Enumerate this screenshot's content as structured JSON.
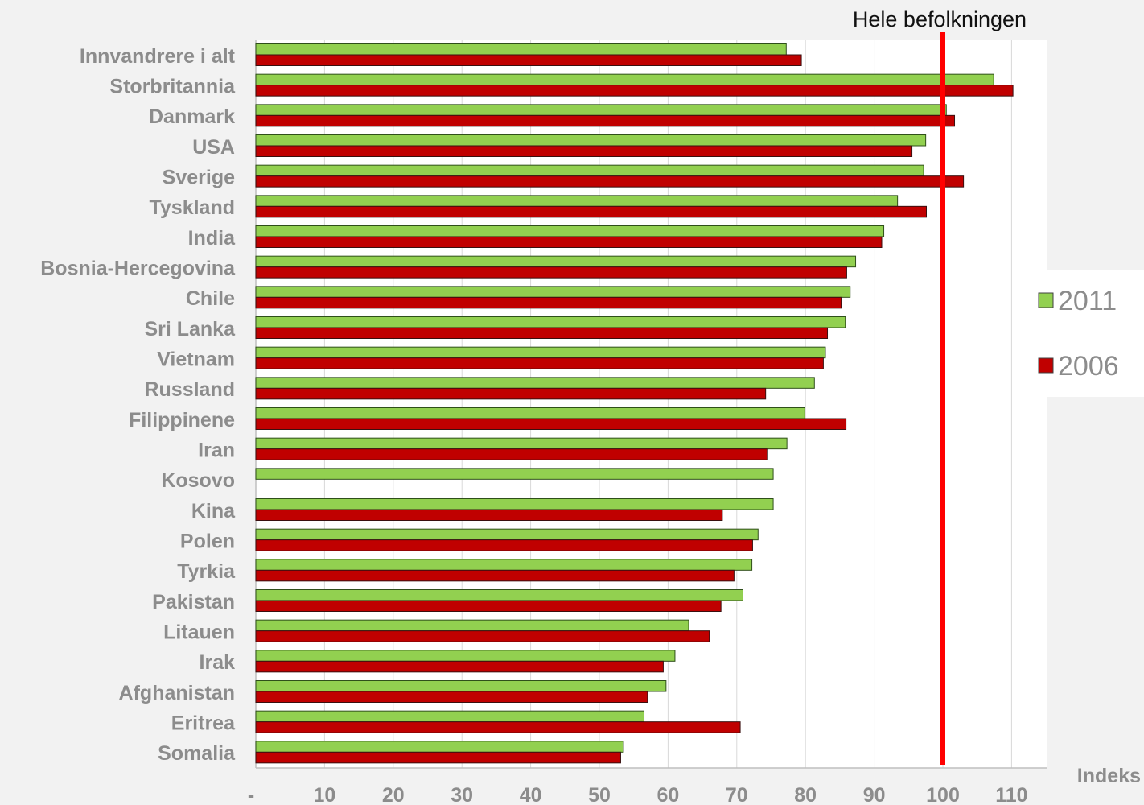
{
  "chart_data": {
    "type": "bar",
    "orientation": "horizontal",
    "categories": [
      "Innvandrere i alt",
      "Storbritannia",
      "Danmark",
      "USA",
      "Sverige",
      "Tyskland",
      "India",
      "Bosnia-Hercegovina",
      "Chile",
      "Sri Lanka",
      "Vietnam",
      "Russland",
      "Filippinene",
      "Iran",
      "Kosovo",
      "Kina",
      "Polen",
      "Tyrkia",
      "Pakistan",
      "Litauen",
      "Irak",
      "Afghanistan",
      "Eritrea",
      "Somalia"
    ],
    "series": [
      {
        "name": "2011",
        "color": "#92d050",
        "values": [
          77.2,
          107.4,
          100.5,
          97.5,
          97.2,
          93.4,
          91.4,
          87.3,
          86.5,
          85.8,
          82.9,
          81.3,
          79.9,
          77.3,
          75.3,
          75.3,
          73.1,
          72.2,
          70.9,
          63.0,
          61.0,
          59.7,
          56.5,
          53.5
        ]
      },
      {
        "name": "2006",
        "color": "#c00000",
        "values": [
          79.4,
          110.2,
          101.7,
          95.5,
          103.0,
          97.6,
          91.1,
          86.0,
          85.2,
          83.2,
          82.6,
          74.2,
          85.9,
          74.5,
          null,
          67.9,
          72.3,
          69.6,
          67.7,
          66.0,
          59.3,
          57.0,
          70.5,
          53.1
        ]
      }
    ],
    "xlabel": "Indeks",
    "xlim": [
      0,
      115
    ],
    "xticks": [
      0,
      10,
      20,
      30,
      40,
      50,
      60,
      70,
      80,
      90,
      100,
      110
    ],
    "xtick_labels": [
      "-",
      "10",
      "20",
      "30",
      "40",
      "50",
      "60",
      "70",
      "80",
      "90",
      "100",
      "110"
    ],
    "reference_line": {
      "value": 100,
      "label": "Hele befolkningen",
      "color": "#ff0000"
    },
    "legend": {
      "placement": "right",
      "entries": [
        "2011",
        "2006"
      ]
    },
    "grid": true
  }
}
